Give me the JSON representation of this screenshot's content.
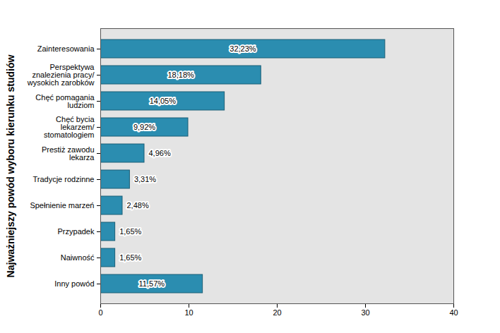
{
  "chart_data": {
    "type": "bar",
    "orientation": "horizontal",
    "y_label": "Najważniejszy powód wyboru kierunku studiów",
    "categories": [
      "Zainteresowania",
      "Perspektywa\nznalezienia pracy/\nwysokich zarobków",
      "Chęć pomagania\nludziom",
      "Chęć bycia\nlekarzem/\nstomatologiem",
      "Prestiż zawodu\nlekarza",
      "Tradycje rodzinne",
      "Spełnienie marzeń",
      "Przypadek",
      "Naiwność",
      "Inny powód"
    ],
    "values": [
      32.23,
      18.18,
      14.05,
      9.92,
      4.96,
      3.31,
      2.48,
      1.65,
      1.65,
      11.57
    ],
    "value_labels": [
      "32,23%",
      "18,18%",
      "14,05%",
      "9,92%",
      "4,96%",
      "3,31%",
      "2,48%",
      "1,65%",
      "1,65%",
      "11,57%"
    ],
    "data_labels": true,
    "color": "#2b8db0",
    "xlim": [
      0,
      40
    ],
    "xticks": [
      0,
      10,
      20,
      30,
      40
    ],
    "grid": false
  }
}
